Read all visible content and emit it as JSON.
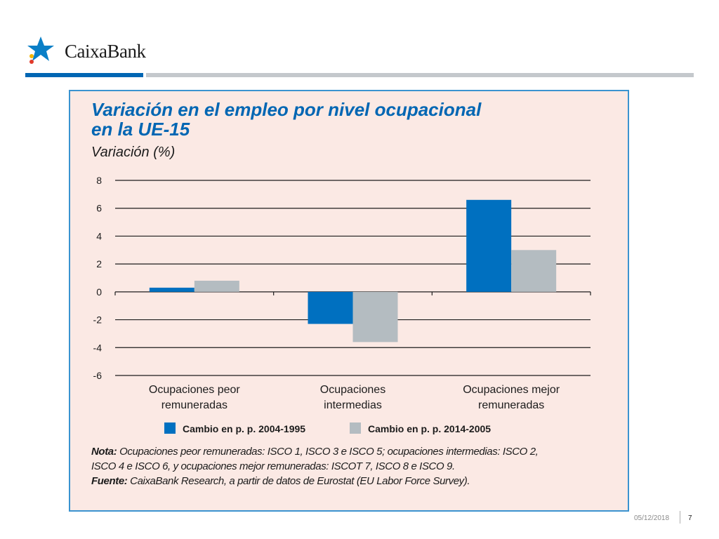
{
  "brand": {
    "name": "CaixaBank",
    "colors": {
      "blue": "#0066b3",
      "grey": "#c4c8cc",
      "star": "#0a7fc7",
      "dot_yellow": "#f5b400",
      "dot_red": "#e23a2a"
    }
  },
  "chart_data": {
    "type": "bar",
    "title_lines": [
      "Variación en el empleo por nivel ocupacional",
      "en la UE-15"
    ],
    "ylabel": "Variación (%)",
    "xlabel": "",
    "ylim": [
      -6,
      8
    ],
    "yticks": [
      "8",
      "6",
      "4",
      "2",
      "0",
      "-2",
      "-4",
      "-6"
    ],
    "ytick_values": [
      8,
      6,
      4,
      2,
      0,
      -2,
      -4,
      -6
    ],
    "grid": true,
    "legend_position": "bottom",
    "categories": [
      [
        "Ocupaciones peor",
        "remuneradas"
      ],
      [
        "Ocupaciones",
        "intermedias"
      ],
      [
        "Ocupaciones mejor",
        "remuneradas"
      ]
    ],
    "series": [
      {
        "name": "Cambio en p. p. 2004-1995",
        "color": "#0070c0",
        "values": [
          0.3,
          -2.3,
          6.6
        ]
      },
      {
        "name": "Cambio en p. p. 2014-2005",
        "color": "#b4bcc1",
        "values": [
          0.8,
          -3.6,
          3.0
        ]
      }
    ]
  },
  "notes": {
    "nota_label": "Nota:",
    "nota_line1": " Ocupaciones peor remuneradas: ISCO 1, ISCO 3 e ISCO 5; ocupaciones intermedias: ISCO 2,",
    "nota_line2": "ISCO 4 e ISCO 6, y ocupaciones mejor remuneradas: ISCOT 7, ISCO 8 e ISCO 9.",
    "fuente_label": "Fuente:",
    "fuente_text": " CaixaBank Research, a partir de datos de Eurostat (EU Labor Force Survey)."
  },
  "footer": {
    "date": "05/12/2018",
    "page": "7"
  }
}
